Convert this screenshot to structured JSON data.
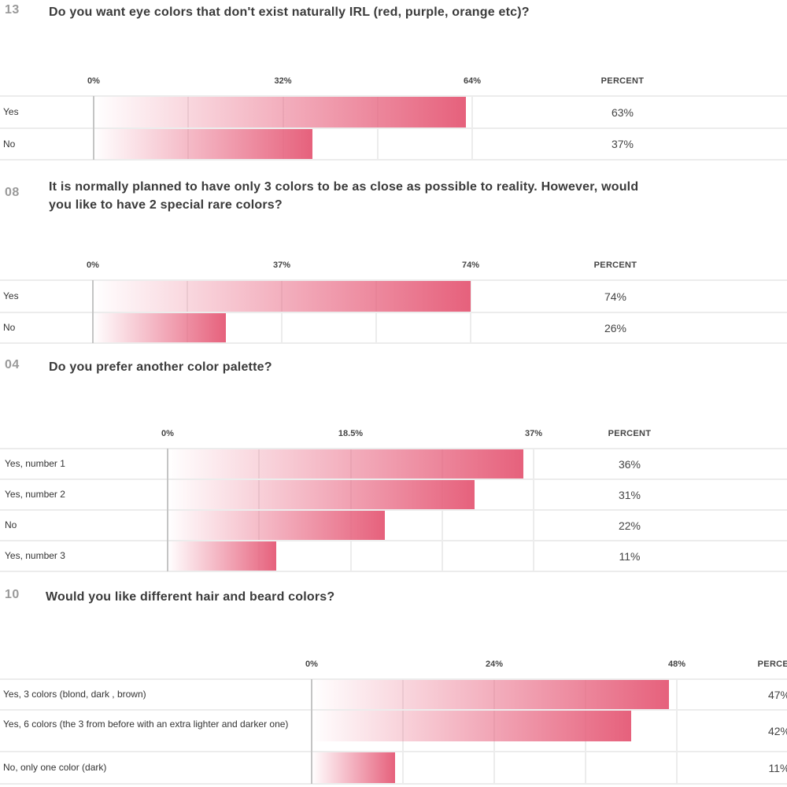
{
  "chart_data": [
    {
      "type": "bar",
      "question_number": "13",
      "title": "Do you want eye colors that don't exist naturally IRL (red, purple, orange etc)?",
      "value_column_header": "PERCENT",
      "ticks": [
        "0%",
        "32%",
        "64%"
      ],
      "xlim": [
        0,
        64
      ],
      "categories": [
        "Yes",
        "No"
      ],
      "values": [
        63,
        37
      ],
      "value_labels": [
        "63%",
        "37%"
      ]
    },
    {
      "type": "bar",
      "question_number": "08",
      "title": "It is normally planned to have only 3 colors to be as close as possible to reality. However, would you like to have 2 special rare colors?",
      "value_column_header": "PERCENT",
      "ticks": [
        "0%",
        "37%",
        "74%"
      ],
      "xlim": [
        0,
        74
      ],
      "categories": [
        "Yes",
        "No"
      ],
      "values": [
        74,
        26
      ],
      "value_labels": [
        "74%",
        "26%"
      ]
    },
    {
      "type": "bar",
      "question_number": "04",
      "title": "Do you prefer another color palette?",
      "value_column_header": "PERCENT",
      "ticks": [
        "0%",
        "18.5%",
        "37%"
      ],
      "xlim": [
        0,
        37
      ],
      "categories": [
        "Yes, number 1",
        "Yes, number 2",
        "No",
        "Yes, number 3"
      ],
      "values": [
        36,
        31,
        22,
        11
      ],
      "value_labels": [
        "36%",
        "31%",
        "22%",
        "11%"
      ]
    },
    {
      "type": "bar",
      "question_number": "10",
      "title": "Would you like different hair and beard colors?",
      "value_column_header": "PERCENT",
      "ticks": [
        "0%",
        "24%",
        "48%"
      ],
      "xlim": [
        0,
        48
      ],
      "categories": [
        "Yes, 3 colors (blond, dark , brown)",
        "Yes, 6 colors (the 3 from before with an extra lighter and darker one)",
        "No, only one color (dark)"
      ],
      "values": [
        47,
        42,
        11
      ],
      "value_labels": [
        "47%",
        "42%",
        "11%"
      ]
    }
  ]
}
